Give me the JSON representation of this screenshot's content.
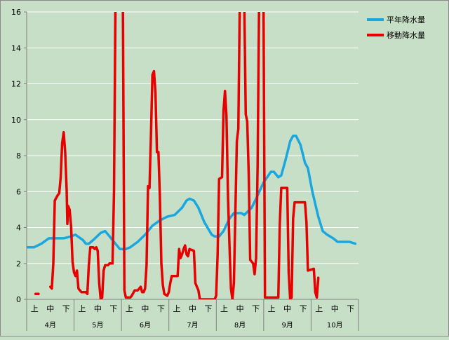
{
  "chart_data": {
    "type": "line",
    "title": "",
    "xlabel": "",
    "ylabel": "",
    "ylim": [
      0,
      16
    ],
    "yticks": [
      0,
      2,
      4,
      6,
      8,
      10,
      12,
      14,
      16
    ],
    "grid": "horizontal",
    "legend_position": "top-right",
    "months": [
      "4月",
      "5月",
      "6月",
      "7月",
      "8月",
      "9月",
      "10月"
    ],
    "dekads": [
      "上",
      "中",
      "下"
    ],
    "x_unit": "day index from April 1 (0 = Apr 1, 213 = Oct 31)",
    "series": [
      {
        "name": "平年降水量",
        "color": "#1aa7e0",
        "points": [
          [
            0,
            2.9
          ],
          [
            5,
            2.9
          ],
          [
            10,
            3.1
          ],
          [
            15,
            3.4
          ],
          [
            20,
            3.4
          ],
          [
            25,
            3.4
          ],
          [
            30,
            3.5
          ],
          [
            33,
            3.6
          ],
          [
            38,
            3.3
          ],
          [
            40,
            3.1
          ],
          [
            42,
            3.1
          ],
          [
            45,
            3.3
          ],
          [
            50,
            3.7
          ],
          [
            53,
            3.8
          ],
          [
            56,
            3.5
          ],
          [
            60,
            3.1
          ],
          [
            63,
            2.8
          ],
          [
            67,
            2.8
          ],
          [
            70,
            2.9
          ],
          [
            75,
            3.2
          ],
          [
            80,
            3.6
          ],
          [
            85,
            4.1
          ],
          [
            90,
            4.4
          ],
          [
            95,
            4.6
          ],
          [
            100,
            4.7
          ],
          [
            105,
            5.1
          ],
          [
            108,
            5.5
          ],
          [
            110,
            5.6
          ],
          [
            113,
            5.5
          ],
          [
            116,
            5.1
          ],
          [
            120,
            4.3
          ],
          [
            125,
            3.6
          ],
          [
            127,
            3.5
          ],
          [
            130,
            3.5
          ],
          [
            133,
            3.8
          ],
          [
            137,
            4.5
          ],
          [
            140,
            4.8
          ],
          [
            145,
            4.8
          ],
          [
            147,
            4.7
          ],
          [
            152,
            5.1
          ],
          [
            155,
            5.6
          ],
          [
            160,
            6.5
          ],
          [
            165,
            7.1
          ],
          [
            167,
            7.1
          ],
          [
            170,
            6.8
          ],
          [
            172,
            6.9
          ],
          [
            175,
            7.8
          ],
          [
            178,
            8.8
          ],
          [
            180,
            9.1
          ],
          [
            182,
            9.1
          ],
          [
            185,
            8.6
          ],
          [
            188,
            7.6
          ],
          [
            190,
            7.3
          ],
          [
            193,
            6.0
          ],
          [
            197,
            4.6
          ],
          [
            200,
            3.8
          ],
          [
            203,
            3.6
          ],
          [
            207,
            3.4
          ],
          [
            210,
            3.2
          ],
          [
            218,
            3.2
          ],
          [
            222,
            3.1
          ]
        ]
      },
      {
        "name": "移動降水量",
        "color": "#e60000",
        "segments": [
          [
            [
              6,
              0.3
            ],
            [
              8,
              0.3
            ]
          ],
          [
            [
              16,
              0.7
            ],
            [
              17,
              0.6
            ],
            [
              18,
              2.0
            ],
            [
              19,
              5.5
            ],
            [
              21,
              5.8
            ],
            [
              22,
              5.9
            ],
            [
              23,
              6.8
            ],
            [
              24,
              8.7
            ],
            [
              25,
              9.3
            ],
            [
              26,
              8.2
            ],
            [
              27,
              6.1
            ],
            [
              27.5,
              4.2
            ],
            [
              28,
              5.2
            ],
            [
              29,
              5.0
            ],
            [
              30,
              4.1
            ],
            [
              31,
              2.1
            ],
            [
              32,
              1.5
            ],
            [
              33,
              1.3
            ],
            [
              34,
              1.6
            ],
            [
              35,
              0.6
            ],
            [
              37,
              0.4
            ],
            [
              40,
              0.4
            ],
            [
              41,
              0.3
            ],
            [
              42,
              1.9
            ],
            [
              43,
              2.9
            ],
            [
              45,
              2.9
            ],
            [
              46,
              2.8
            ],
            [
              47,
              2.9
            ],
            [
              48,
              2.7
            ],
            [
              49,
              0.9
            ],
            [
              50,
              0.0
            ],
            [
              51,
              0.1
            ],
            [
              52,
              1.6
            ],
            [
              53,
              1.9
            ],
            [
              55,
              1.9
            ],
            [
              56,
              2.0
            ],
            [
              58,
              2.0
            ],
            [
              59,
              6.0
            ],
            [
              60,
              16.5
            ],
            [
              64,
              16.5
            ],
            [
              65,
              16.0
            ],
            [
              66,
              0.5
            ],
            [
              67,
              0.1
            ],
            [
              70,
              0.1
            ],
            [
              71,
              0.2
            ],
            [
              73,
              0.5
            ],
            [
              75,
              0.5
            ],
            [
              77,
              0.7
            ],
            [
              78,
              0.4
            ],
            [
              79,
              0.4
            ],
            [
              80,
              0.6
            ],
            [
              81,
              1.9
            ],
            [
              82,
              6.3
            ],
            [
              83,
              6.2
            ],
            [
              84,
              9.2
            ],
            [
              85,
              12.5
            ],
            [
              86,
              12.7
            ],
            [
              87,
              11.5
            ],
            [
              88,
              8.2
            ],
            [
              89,
              8.2
            ],
            [
              90,
              5.7
            ],
            [
              91,
              2.0
            ],
            [
              92,
              0.8
            ],
            [
              93,
              0.3
            ],
            [
              95,
              0.2
            ],
            [
              96,
              0.4
            ],
            [
              97,
              0.9
            ],
            [
              98,
              1.3
            ],
            [
              102,
              1.3
            ],
            [
              103,
              2.8
            ],
            [
              104,
              2.3
            ],
            [
              105,
              2.5
            ],
            [
              106,
              2.8
            ],
            [
              107,
              3.0
            ],
            [
              108,
              2.5
            ],
            [
              109,
              2.4
            ],
            [
              110,
              2.8
            ],
            [
              113,
              2.7
            ],
            [
              114,
              0.9
            ],
            [
              116,
              0.5
            ],
            [
              117,
              0.0
            ],
            [
              127,
              0.0
            ],
            [
              128,
              0.2
            ],
            [
              129,
              2.5
            ],
            [
              130,
              6.7
            ],
            [
              132,
              6.8
            ],
            [
              133,
              10.5
            ],
            [
              134,
              11.6
            ],
            [
              135,
              10.2
            ],
            [
              136,
              5.7
            ],
            [
              137,
              3.0
            ],
            [
              138,
              0.6
            ],
            [
              139,
              0.0
            ],
            [
              140,
              0.9
            ],
            [
              142,
              8.8
            ],
            [
              143,
              9.5
            ],
            [
              144,
              16.5
            ],
            [
              147,
              16.5
            ],
            [
              148,
              10.3
            ],
            [
              149,
              9.9
            ],
            [
              150,
              7.0
            ],
            [
              151,
              2.2
            ],
            [
              152,
              2.1
            ],
            [
              153,
              2.0
            ],
            [
              154,
              1.4
            ],
            [
              155,
              2.3
            ],
            [
              156,
              7.4
            ],
            [
              157,
              16.5
            ],
            [
              160,
              16.5
            ],
            [
              161,
              0.1
            ],
            [
              170,
              0.1
            ],
            [
              171,
              4.2
            ],
            [
              172,
              6.2
            ],
            [
              176,
              6.2
            ],
            [
              177,
              1.5
            ],
            [
              178,
              0.0
            ],
            [
              179,
              0.1
            ],
            [
              180,
              4.5
            ],
            [
              181,
              5.4
            ],
            [
              188,
              5.4
            ],
            [
              189,
              4.3
            ],
            [
              190,
              1.6
            ],
            [
              194,
              1.7
            ],
            [
              195,
              0.4
            ],
            [
              196,
              0.1
            ],
            [
              197,
              1.2
            ]
          ]
        ]
      }
    ]
  }
}
